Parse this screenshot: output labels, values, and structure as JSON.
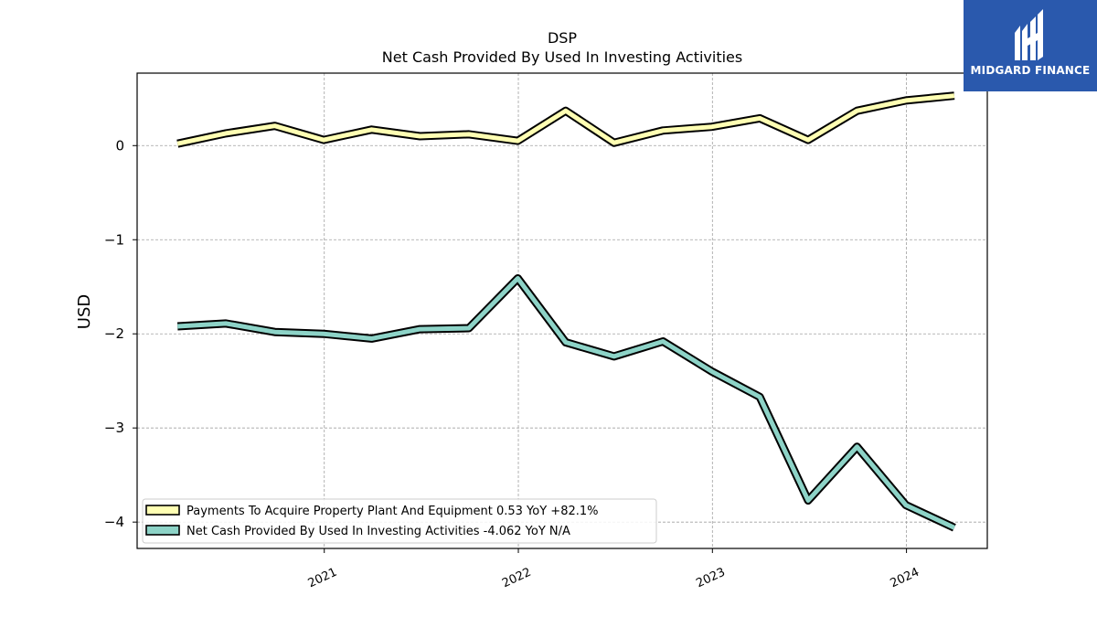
{
  "logo": {
    "text": "MIDGARD FINANCE",
    "icon": "midgard-mark-icon",
    "background": "#2a59ad"
  },
  "chart_data": {
    "type": "line",
    "title": "DSP",
    "subtitle": "Net Cash Provided By Used In Investing Activities",
    "ylabel": "USD",
    "xlabel": "",
    "ylim": [
      -4.28,
      0.77
    ],
    "xlim": [
      "2020-01-15",
      "2024-06-01"
    ],
    "yticks": [
      0,
      -1,
      -2,
      -3,
      -4
    ],
    "ytick_labels": [
      "0",
      "−1",
      "−2",
      "−3",
      "−4"
    ],
    "xticks": [
      "2021-01-01",
      "2022-01-01",
      "2023-01-01",
      "2024-01-01"
    ],
    "xtick_labels": [
      "2021",
      "2022",
      "2023",
      "2024"
    ],
    "grid": true,
    "legend_position": "lower-left",
    "x": [
      "2020-03-31",
      "2020-06-30",
      "2020-09-30",
      "2020-12-31",
      "2021-03-31",
      "2021-06-30",
      "2021-09-30",
      "2021-12-31",
      "2022-03-31",
      "2022-06-30",
      "2022-09-30",
      "2022-12-31",
      "2023-03-31",
      "2023-06-30",
      "2023-09-30",
      "2023-12-31",
      "2024-03-31"
    ],
    "series": [
      {
        "name": "Payments To Acquire Property Plant And Equipment  0.53 YoY +82.1%",
        "color": "#ffffb3",
        "values": [
          0.02,
          0.13,
          0.21,
          0.06,
          0.17,
          0.1,
          0.12,
          0.05,
          0.37,
          0.03,
          0.16,
          0.2,
          0.29,
          0.06,
          0.37,
          0.48,
          0.53
        ]
      },
      {
        "name": "Net Cash Provided By Used In Investing Activities  -4.062 YoY N/A",
        "color": "#8dd3c7",
        "values": [
          -1.92,
          -1.89,
          -1.98,
          -2.0,
          -2.05,
          -1.95,
          -1.94,
          -1.41,
          -2.09,
          -2.24,
          -2.08,
          -2.4,
          -2.67,
          -3.77,
          -3.2,
          -3.82,
          -4.06
        ]
      }
    ]
  }
}
